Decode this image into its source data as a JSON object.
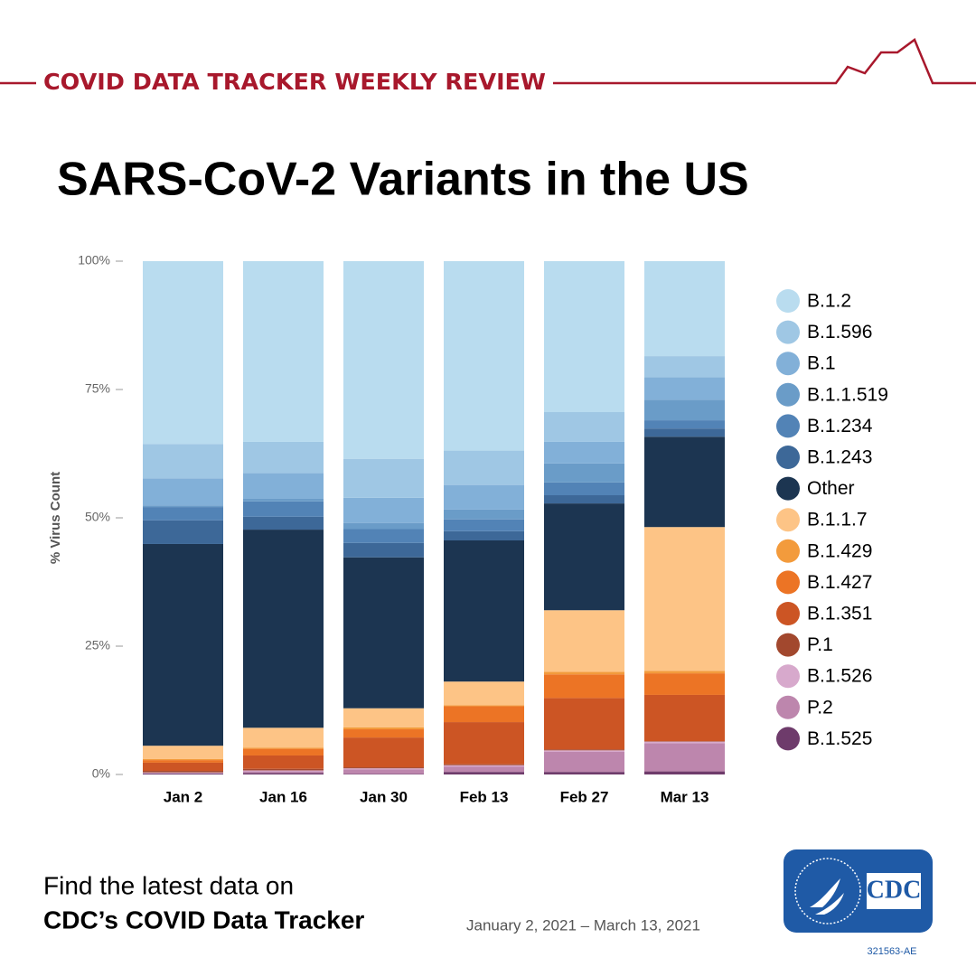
{
  "header": {
    "kicker": "COVID DATA TRACKER WEEKLY REVIEW"
  },
  "chart_data": {
    "type": "stacked_bar",
    "title": "SARS-CoV-2 Variants in the US",
    "y_label": "% Virus Count",
    "categories": [
      "Jan 2",
      "Jan 16",
      "Jan 30",
      "Feb 13",
      "Feb 27",
      "Mar 13"
    ],
    "ylim": [
      0,
      100
    ],
    "yticks": [
      {
        "value": 0,
        "label": "0%"
      },
      {
        "value": 25,
        "label": "25%"
      },
      {
        "value": 50,
        "label": "50%"
      },
      {
        "value": 75,
        "label": "75%"
      },
      {
        "value": 100,
        "label": "100%"
      }
    ],
    "grid": false,
    "legend": "right",
    "series": [
      {
        "name": "B.1.2",
        "color": "#b9dcef",
        "values": [
          35.6,
          35.2,
          38.5,
          36.9,
          29.4,
          18.5
        ]
      },
      {
        "name": "B.1.596",
        "color": "#9fc7e4",
        "values": [
          6.7,
          6.1,
          7.6,
          6.7,
          5.8,
          4.1
        ]
      },
      {
        "name": "B.1",
        "color": "#82b0d8",
        "values": [
          5.3,
          5.0,
          4.9,
          4.8,
          4.2,
          4.4
        ]
      },
      {
        "name": "B.1.1.519",
        "color": "#6a9cc8",
        "values": [
          0.3,
          0.5,
          1.2,
          1.9,
          3.7,
          4.0
        ]
      },
      {
        "name": "B.1.234",
        "color": "#5283b6",
        "values": [
          2.6,
          3.0,
          2.7,
          2.3,
          2.5,
          1.6
        ]
      },
      {
        "name": "B.1.243",
        "color": "#3d6898",
        "values": [
          4.6,
          2.5,
          2.8,
          1.8,
          1.6,
          1.6
        ]
      },
      {
        "name": "Other",
        "color": "#1c3551",
        "values": [
          39.3,
          38.6,
          29.4,
          27.5,
          20.8,
          17.6
        ]
      },
      {
        "name": "B.1.1.7",
        "color": "#fdc486",
        "values": [
          2.6,
          3.9,
          3.7,
          4.6,
          12.0,
          28.0
        ]
      },
      {
        "name": "B.1.429",
        "color": "#f39b3c",
        "values": [
          0.2,
          0.2,
          0.4,
          0.2,
          0.5,
          0.5
        ]
      },
      {
        "name": "B.1.427",
        "color": "#ec7425",
        "values": [
          0.5,
          1.3,
          1.6,
          3.1,
          4.6,
          4.2
        ]
      },
      {
        "name": "B.1.351",
        "color": "#cc5524",
        "values": [
          1.6,
          2.6,
          5.8,
          8.2,
          10.0,
          9.0
        ]
      },
      {
        "name": "P.1",
        "color": "#a2482e",
        "values": [
          0.3,
          0.3,
          0.2,
          0.2,
          0.2,
          0.1
        ]
      },
      {
        "name": "B.1.526",
        "color": "#d7a9cc",
        "values": [
          0.1,
          0.2,
          0.2,
          0.3,
          0.3,
          0.3
        ]
      },
      {
        "name": "P.2",
        "color": "#bd86ad",
        "values": [
          0.1,
          0.3,
          0.9,
          1.0,
          3.9,
          5.5
        ]
      },
      {
        "name": "B.1.525",
        "color": "#6e3b6b",
        "values": [
          0.2,
          0.3,
          0.1,
          0.5,
          0.5,
          0.6
        ]
      }
    ]
  },
  "footer": {
    "line1": "Find the latest data on",
    "line2": "CDC’s COVID Data Tracker",
    "date_range": "January 2, 2021 – March 13, 2021",
    "logo": "CDC",
    "code": "321563-AE"
  }
}
